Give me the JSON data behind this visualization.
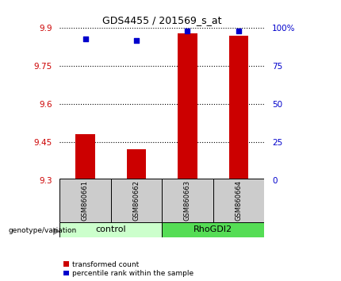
{
  "title": "GDS4455 / 201569_s_at",
  "samples": [
    "GSM860661",
    "GSM860662",
    "GSM860663",
    "GSM860664"
  ],
  "group_colors": [
    "#ccffcc",
    "#55dd55"
  ],
  "transformed_counts": [
    9.48,
    9.42,
    9.88,
    9.87
  ],
  "percentile_ranks": [
    93,
    92,
    98,
    98
  ],
  "y_min": 9.3,
  "y_max": 9.9,
  "y_ticks_left": [
    9.3,
    9.45,
    9.6,
    9.75,
    9.9
  ],
  "y_ticks_right": [
    0,
    25,
    50,
    75,
    100
  ],
  "bar_color": "#cc0000",
  "dot_color": "#0000cc",
  "bar_width": 0.38,
  "legend_red": "transformed count",
  "legend_blue": "percentile rank within the sample",
  "sample_bg": "#cccccc",
  "title_fontsize": 9
}
